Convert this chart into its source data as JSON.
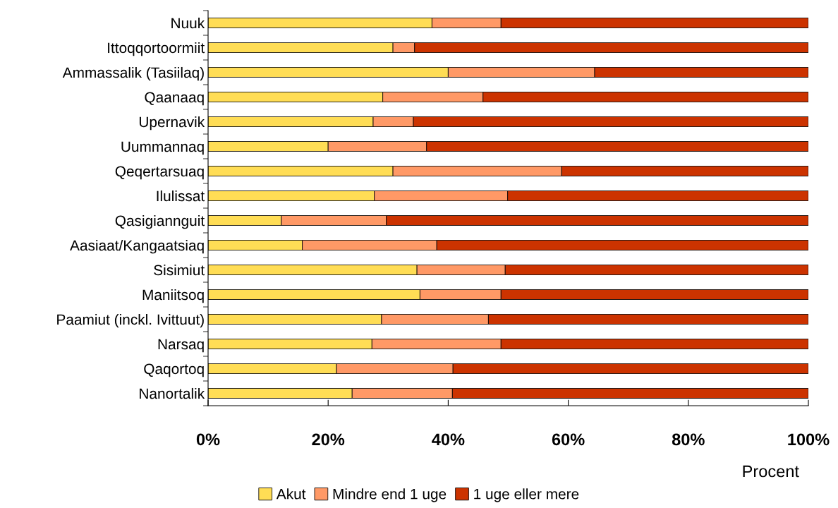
{
  "chart_data": {
    "type": "bar",
    "orientation": "horizontal",
    "stacked": true,
    "xlabel": "Procent",
    "categories": [
      "Nuuk",
      "Ittoqqortoormiit",
      "Ammassalik (Tasiilaq)",
      "Qaanaaq",
      "Upernavik",
      "Uummannaq",
      "Qeqertarsuaq",
      "Ilulissat",
      "Qasigiannguit",
      "Aasiaat/Kangaatsiaq",
      "Sisimiut",
      "Maniitsoq",
      "Paamiut (inckl. Ivittuut)",
      "Narsaq",
      "Qaqortoq",
      "Nanortalik"
    ],
    "series": [
      {
        "name": "Akut",
        "color": "#ffdd55",
        "values": [
          37.3,
          30.8,
          40.0,
          29.1,
          27.5,
          20.0,
          30.8,
          27.7,
          12.2,
          15.7,
          34.8,
          35.3,
          28.9,
          27.3,
          21.4,
          24.0
        ]
      },
      {
        "name": "Mindre end 1 uge",
        "color": "#ff9966",
        "values": [
          11.5,
          3.6,
          24.4,
          16.7,
          6.7,
          16.4,
          28.1,
          22.2,
          17.5,
          22.4,
          14.7,
          13.5,
          17.8,
          21.5,
          19.4,
          16.7
        ]
      },
      {
        "name": "1 uge eller mere",
        "color": "#cc3300",
        "values": [
          51.2,
          65.6,
          35.6,
          54.2,
          65.8,
          63.6,
          41.1,
          50.1,
          70.3,
          61.9,
          50.5,
          51.2,
          53.3,
          51.2,
          59.2,
          59.3
        ]
      }
    ],
    "xlim": [
      0,
      100
    ],
    "xticks": [
      {
        "value": 0,
        "label": "0%"
      },
      {
        "value": 20,
        "label": "20%"
      },
      {
        "value": 40,
        "label": "40%"
      },
      {
        "value": 60,
        "label": "60%"
      },
      {
        "value": 80,
        "label": "80%"
      },
      {
        "value": 100,
        "label": "100%"
      }
    ],
    "grid": false,
    "legend": "bottom"
  }
}
